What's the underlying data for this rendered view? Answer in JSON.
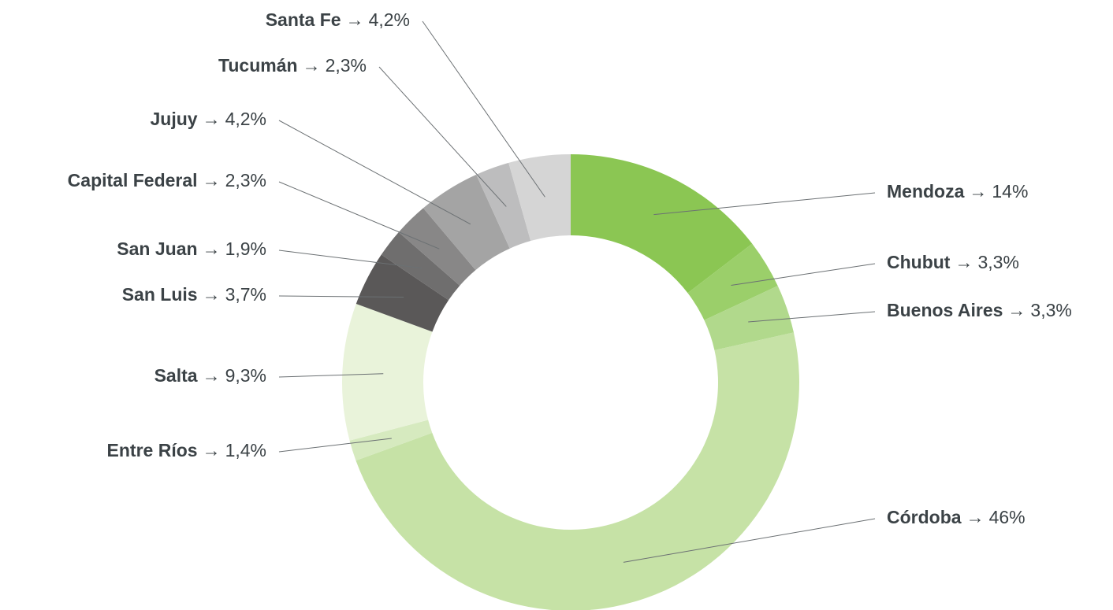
{
  "chart_data": {
    "type": "donut",
    "separator": "→",
    "categories": [
      "Mendoza",
      "Chubut",
      "Buenos Aires",
      "Córdoba",
      "Entre Ríos",
      "Salta",
      "San Luis",
      "San Juan",
      "Capital Federal",
      "Jujuy",
      "Tucumán",
      "Santa Fe"
    ],
    "values": [
      14,
      3.3,
      3.3,
      46,
      1.4,
      9.3,
      3.7,
      1.9,
      2.3,
      4.2,
      2.3,
      4.2
    ],
    "value_labels": [
      "14%",
      "3,3%",
      "3,3%",
      "46%",
      "1,4%",
      "9,3%",
      "3,7%",
      "1,9%",
      "2,3%",
      "4,2%",
      "2,3%",
      "4,2%"
    ],
    "colors": [
      "#8bc653",
      "#9bcf6a",
      "#b1d98c",
      "#c6e2a6",
      "#d6eabf",
      "#e9f3da",
      "#5a5858",
      "#6f6e6e",
      "#888787",
      "#a4a4a4",
      "#bdbdbe",
      "#d5d5d5"
    ]
  }
}
